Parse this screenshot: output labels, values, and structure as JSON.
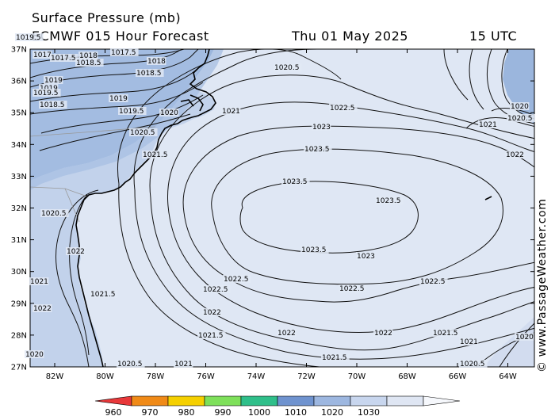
{
  "header": {
    "title": "Surface Pressure (mb)",
    "model_line": "ECMWF 015 Hour Forecast",
    "valid_date": "Thu 01 May 2025",
    "valid_time": "15 UTC"
  },
  "copyright": "© www.PassageWeather.com",
  "map": {
    "lat_labels": [
      "37N",
      "36N",
      "35N",
      "34N",
      "33N",
      "32N",
      "31N",
      "30N",
      "29N",
      "28N",
      "27N"
    ],
    "lon_labels": [
      "82W",
      "80W",
      "78W",
      "76W",
      "74W",
      "72W",
      "70W",
      "68W",
      "66W",
      "64W"
    ],
    "land_color": "#e6ecf7",
    "isobar_labels": [
      {
        "text": "1017"
      },
      {
        "text": "1017.5"
      },
      {
        "text": "1018"
      },
      {
        "text": "1018.5"
      },
      {
        "text": "1017.5"
      },
      {
        "text": "1018"
      },
      {
        "text": "1018.5"
      },
      {
        "text": "1019"
      },
      {
        "text": "1019"
      },
      {
        "text": "1019.5"
      },
      {
        "text": "1018.5"
      },
      {
        "text": "1019"
      },
      {
        "text": "1019.5"
      },
      {
        "text": "1020"
      },
      {
        "text": "1020.5"
      },
      {
        "text": "1021"
      },
      {
        "text": "1021.5"
      },
      {
        "text": "1020.5"
      },
      {
        "text": "1020.5"
      },
      {
        "text": "1021"
      },
      {
        "text": "1022"
      },
      {
        "text": "1022.5"
      },
      {
        "text": "1023"
      },
      {
        "text": "1023.5"
      },
      {
        "text": "1023.5"
      },
      {
        "text": "1023.5"
      },
      {
        "text": "1023.5"
      },
      {
        "text": "1023"
      },
      {
        "text": "1022.5"
      },
      {
        "text": "1022.5"
      },
      {
        "text": "1022.5"
      },
      {
        "text": "1022.5"
      },
      {
        "text": "1022"
      },
      {
        "text": "1022"
      },
      {
        "text": "1022"
      },
      {
        "text": "1022"
      },
      {
        "text": "1021.5"
      },
      {
        "text": "1021.5"
      },
      {
        "text": "1021.5"
      },
      {
        "text": "1021"
      },
      {
        "text": "1021"
      },
      {
        "text": "1020.5"
      },
      {
        "text": "1021"
      },
      {
        "text": "1021.5"
      },
      {
        "text": "1022"
      },
      {
        "text": "1020"
      },
      {
        "text": "1020.5"
      },
      {
        "text": "1020"
      },
      {
        "text": "1019.5"
      },
      {
        "text": "1020"
      },
      {
        "text": "1020.5"
      }
    ]
  },
  "colorbar": {
    "tick_labels": [
      "960",
      "970",
      "980",
      "990",
      "1000",
      "1010",
      "1020",
      "1030"
    ],
    "colors": [
      "#e8383a",
      "#f08a17",
      "#f5d000",
      "#7ee05a",
      "#2fbf8a",
      "#6f93cf",
      "#9db7e0",
      "#c8d6ee",
      "#dfe6f3",
      "#f6f8fc"
    ]
  }
}
